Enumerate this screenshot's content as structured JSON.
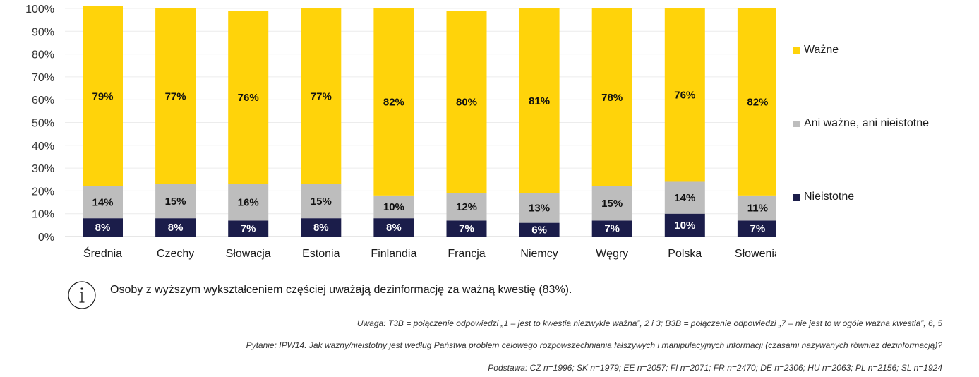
{
  "chart_data": {
    "type": "bar",
    "stacked": true,
    "categories": [
      "Średnia",
      "Czechy",
      "Słowacja",
      "Estonia",
      "Finlandia",
      "Francja",
      "Niemcy",
      "Węgry",
      "Polska",
      "Słowenia"
    ],
    "series": [
      {
        "name": "Nieistotne",
        "color": "#1b1d4a",
        "values": [
          8,
          8,
          7,
          8,
          8,
          7,
          6,
          7,
          10,
          7
        ]
      },
      {
        "name": "Ani ważne, ani nieistotne",
        "color": "#bdbdbd",
        "values": [
          14,
          15,
          16,
          15,
          10,
          12,
          13,
          15,
          14,
          11
        ]
      },
      {
        "name": "Ważne",
        "color": "#ffd30a",
        "values": [
          79,
          77,
          76,
          77,
          82,
          80,
          81,
          78,
          76,
          82
        ]
      }
    ],
    "value_suffix": "%",
    "y_ticks": [
      "0%",
      "10%",
      "20%",
      "30%",
      "40%",
      "50%",
      "60%",
      "70%",
      "80%",
      "90%",
      "100%"
    ],
    "ylim": [
      0,
      100
    ],
    "grid": true,
    "legend_position": "right"
  },
  "legend": [
    {
      "label": "Ważne",
      "color": "#ffd30a"
    },
    {
      "label": "Ani ważne, ani nieistotne",
      "color": "#bdbdbd"
    },
    {
      "label": "Nieistotne",
      "color": "#1b1d4a"
    }
  ],
  "info": {
    "text": "Osoby z wyższym wykształceniem częściej uważają dezinformację za ważną kwestię (83%)."
  },
  "notes": {
    "uwaga": "Uwaga: T3B = połączenie odpowiedzi „1 – jest to kwestia niezwykle ważna”, 2 i 3; B3B = połączenie odpowiedzi „7 – nie jest to w ogóle ważna kwestia”, 6, 5",
    "pytanie": "Pytanie: IPW14. Jak ważny/nieistotny jest według Państwa problem celowego rozpowszechniania fałszywych i manipulacyjnych informacji (czasami nazywanych również dezinformacją)?",
    "podstawa": "Podstawa: CZ n=1996; SK n=1979; EE n=2057; FI n=2071; FR n=2470; DE n=2306; HU n=2063; PL n=2156; SL n=1924"
  }
}
